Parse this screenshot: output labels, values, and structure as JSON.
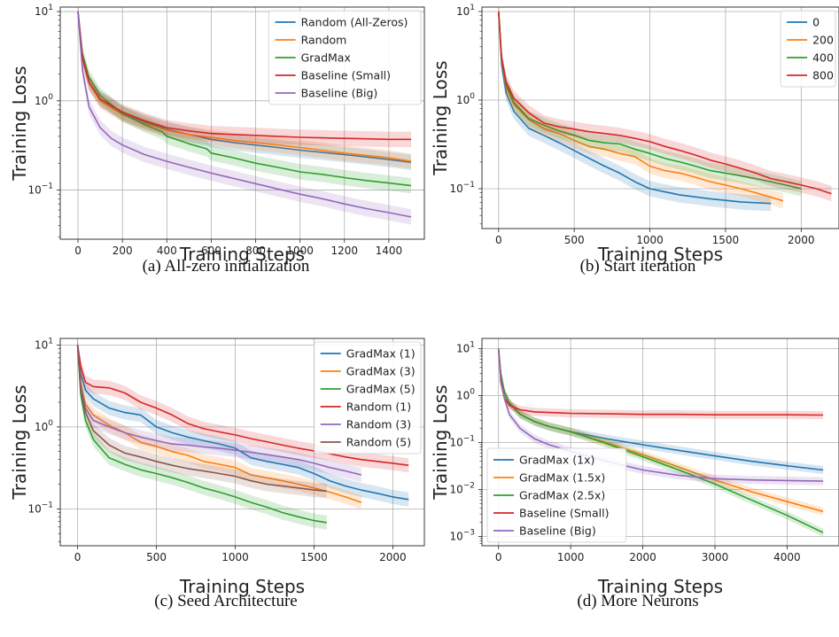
{
  "colors": {
    "C0": "#1f77b4",
    "C1": "#ff7f0e",
    "C2": "#2ca02c",
    "C3": "#d62728",
    "C4": "#9467bd",
    "C5": "#8c564b",
    "grid": "#b0b0b0",
    "axis": "#222222"
  },
  "chart_data": [
    {
      "id": "a",
      "type": "line",
      "caption": "(a) All-zero initialization",
      "xlabel": "Training Steps",
      "ylabel": "Training Loss",
      "yscale": "log",
      "xlim": [
        -80,
        1560
      ],
      "ylog_range": [
        -1.55,
        1.05
      ],
      "xticks": [
        0,
        200,
        400,
        600,
        800,
        1000,
        1200,
        1400
      ],
      "yticks": [
        {
          "label_base": "10",
          "label_exp": "1",
          "value": 10
        },
        {
          "label_base": "10",
          "label_exp": "0",
          "value": 1
        },
        {
          "label_base": "10",
          "label_exp": "−1",
          "value": 0.1
        }
      ],
      "legend": "top-right",
      "series": [
        {
          "name": "Random (All-Zeros)",
          "color": "C0",
          "x": [
            0,
            20,
            50,
            100,
            200,
            300,
            400,
            500,
            600,
            700,
            800,
            900,
            1000,
            1100,
            1200,
            1300,
            1400,
            1500
          ],
          "y": [
            10,
            3.0,
            1.6,
            1.05,
            0.72,
            0.58,
            0.48,
            0.42,
            0.37,
            0.34,
            0.32,
            0.3,
            0.28,
            0.265,
            0.25,
            0.235,
            0.22,
            0.205
          ]
        },
        {
          "name": "Random",
          "color": "C1",
          "x": [
            0,
            20,
            50,
            100,
            200,
            300,
            400,
            500,
            600,
            700,
            800,
            900,
            1000,
            1100,
            1200,
            1300,
            1400,
            1500
          ],
          "y": [
            10,
            3.0,
            1.6,
            1.0,
            0.7,
            0.56,
            0.47,
            0.42,
            0.39,
            0.36,
            0.34,
            0.32,
            0.3,
            0.28,
            0.26,
            0.245,
            0.23,
            0.21
          ]
        },
        {
          "name": "GradMax",
          "color": "C2",
          "x": [
            0,
            20,
            50,
            100,
            200,
            300,
            380,
            400,
            500,
            580,
            600,
            700,
            800,
            900,
            1000,
            1100,
            1200,
            1300,
            1400,
            1500
          ],
          "y": [
            10,
            3.3,
            1.8,
            1.15,
            0.72,
            0.54,
            0.45,
            0.4,
            0.33,
            0.29,
            0.26,
            0.23,
            0.2,
            0.18,
            0.16,
            0.15,
            0.138,
            0.128,
            0.12,
            0.112
          ]
        },
        {
          "name": "Baseline (Small)",
          "color": "C3",
          "x": [
            0,
            20,
            50,
            100,
            200,
            300,
            400,
            500,
            600,
            700,
            800,
            900,
            1000,
            1100,
            1200,
            1300,
            1400,
            1500
          ],
          "y": [
            10,
            3.0,
            1.6,
            1.05,
            0.75,
            0.6,
            0.5,
            0.46,
            0.43,
            0.42,
            0.41,
            0.4,
            0.39,
            0.385,
            0.38,
            0.375,
            0.37,
            0.37
          ]
        },
        {
          "name": "Baseline (Big)",
          "color": "C4",
          "x": [
            0,
            20,
            50,
            100,
            150,
            200,
            300,
            400,
            500,
            600,
            700,
            800,
            900,
            1000,
            1100,
            1200,
            1300,
            1400,
            1500
          ],
          "y": [
            10,
            2.2,
            0.85,
            0.5,
            0.38,
            0.32,
            0.25,
            0.21,
            0.18,
            0.155,
            0.135,
            0.118,
            0.103,
            0.09,
            0.08,
            0.07,
            0.062,
            0.056,
            0.05
          ]
        }
      ]
    },
    {
      "id": "b",
      "type": "line",
      "caption": "(b) Start iteration",
      "xlabel": "Training Steps",
      "ylabel": "Training Loss",
      "yscale": "log",
      "xlim": [
        -110,
        2250
      ],
      "ylog_range": [
        -1.45,
        1.05
      ],
      "xticks": [
        0,
        500,
        1000,
        1500,
        2000
      ],
      "yticks": [
        {
          "label_base": "10",
          "label_exp": "1",
          "value": 10
        },
        {
          "label_base": "10",
          "label_exp": "0",
          "value": 1
        },
        {
          "label_base": "10",
          "label_exp": "−1",
          "value": 0.1
        }
      ],
      "legend": "top-right",
      "series": [
        {
          "name": "0",
          "color": "C0",
          "x": [
            0,
            20,
            50,
            100,
            200,
            300,
            400,
            500,
            600,
            700,
            800,
            900,
            1000,
            1200,
            1400,
            1600,
            1800
          ],
          "y": [
            10,
            2.5,
            1.2,
            0.75,
            0.48,
            0.4,
            0.33,
            0.27,
            0.22,
            0.18,
            0.15,
            0.12,
            0.1,
            0.085,
            0.077,
            0.071,
            0.068
          ]
        },
        {
          "name": "200",
          "color": "C1",
          "x": [
            0,
            20,
            50,
            100,
            200,
            300,
            400,
            500,
            600,
            700,
            800,
            900,
            1000,
            1100,
            1200,
            1300,
            1400,
            1500,
            1600,
            1700,
            1800,
            1880
          ],
          "y": [
            10,
            2.8,
            1.4,
            0.9,
            0.6,
            0.48,
            0.42,
            0.35,
            0.3,
            0.28,
            0.25,
            0.23,
            0.18,
            0.16,
            0.15,
            0.135,
            0.12,
            0.11,
            0.1,
            0.09,
            0.08,
            0.073
          ]
        },
        {
          "name": "400",
          "color": "C2",
          "x": [
            0,
            20,
            50,
            100,
            200,
            300,
            400,
            500,
            600,
            700,
            800,
            900,
            1000,
            1100,
            1200,
            1300,
            1400,
            1500,
            1600,
            1700,
            1800,
            1900,
            2000
          ],
          "y": [
            10,
            2.9,
            1.5,
            0.95,
            0.62,
            0.52,
            0.45,
            0.4,
            0.35,
            0.33,
            0.32,
            0.28,
            0.25,
            0.22,
            0.2,
            0.18,
            0.16,
            0.15,
            0.14,
            0.13,
            0.12,
            0.11,
            0.1
          ]
        },
        {
          "name": "800",
          "color": "C3",
          "x": [
            0,
            20,
            50,
            100,
            200,
            300,
            400,
            500,
            600,
            700,
            800,
            900,
            1000,
            1100,
            1200,
            1300,
            1400,
            1500,
            1600,
            1700,
            1800,
            1900,
            2000,
            2100,
            2200
          ],
          "y": [
            10,
            3.0,
            1.6,
            1.05,
            0.72,
            0.55,
            0.5,
            0.47,
            0.44,
            0.42,
            0.4,
            0.37,
            0.34,
            0.3,
            0.27,
            0.24,
            0.21,
            0.19,
            0.17,
            0.15,
            0.13,
            0.12,
            0.11,
            0.1,
            0.088
          ]
        }
      ]
    },
    {
      "id": "c",
      "type": "line",
      "caption": "(c) Seed Architecture",
      "xlabel": "Training Steps",
      "ylabel": "Training Loss",
      "yscale": "log",
      "xlim": [
        -110,
        2200
      ],
      "ylog_range": [
        -1.45,
        1.08
      ],
      "xticks": [
        0,
        500,
        1000,
        1500,
        2000
      ],
      "yticks": [
        {
          "label_base": "10",
          "label_exp": "1",
          "value": 10
        },
        {
          "label_base": "10",
          "label_exp": "0",
          "value": 1
        },
        {
          "label_base": "10",
          "label_exp": "−1",
          "value": 0.1
        }
      ],
      "legend": "top-right",
      "series": [
        {
          "name": "GradMax (1)",
          "color": "C0",
          "x": [
            0,
            20,
            50,
            100,
            200,
            300,
            400,
            500,
            600,
            700,
            800,
            900,
            1000,
            1100,
            1200,
            1300,
            1400,
            1500,
            1600,
            1700,
            1800,
            1900,
            2000,
            2100
          ],
          "y": [
            10,
            4.5,
            2.8,
            2.2,
            1.7,
            1.5,
            1.4,
            1.0,
            0.85,
            0.75,
            0.68,
            0.62,
            0.55,
            0.42,
            0.38,
            0.35,
            0.32,
            0.27,
            0.22,
            0.19,
            0.17,
            0.155,
            0.14,
            0.13
          ]
        },
        {
          "name": "GradMax (3)",
          "color": "C1",
          "x": [
            0,
            20,
            50,
            100,
            200,
            300,
            400,
            500,
            600,
            700,
            800,
            900,
            1000,
            1100,
            1200,
            1300,
            1400,
            1500,
            1600,
            1700,
            1800
          ],
          "y": [
            10,
            3.5,
            1.9,
            1.4,
            1.05,
            0.85,
            0.65,
            0.58,
            0.5,
            0.45,
            0.38,
            0.35,
            0.32,
            0.26,
            0.24,
            0.22,
            0.2,
            0.18,
            0.16,
            0.14,
            0.12
          ]
        },
        {
          "name": "GradMax (5)",
          "color": "C2",
          "x": [
            0,
            20,
            50,
            100,
            200,
            300,
            400,
            500,
            600,
            700,
            800,
            900,
            1000,
            1100,
            1200,
            1300,
            1400,
            1500,
            1580
          ],
          "y": [
            10,
            2.5,
            1.2,
            0.7,
            0.42,
            0.35,
            0.3,
            0.27,
            0.24,
            0.21,
            0.18,
            0.16,
            0.14,
            0.12,
            0.105,
            0.09,
            0.08,
            0.072,
            0.068
          ]
        },
        {
          "name": "Random (1)",
          "color": "C3",
          "x": [
            0,
            20,
            50,
            100,
            200,
            300,
            400,
            500,
            600,
            700,
            800,
            900,
            1000,
            1100,
            1200,
            1300,
            1400,
            1500,
            1600,
            1700,
            1800,
            1900,
            2000,
            2100
          ],
          "y": [
            10,
            5.5,
            3.5,
            3.1,
            3.0,
            2.6,
            2.0,
            1.7,
            1.4,
            1.1,
            0.95,
            0.87,
            0.8,
            0.72,
            0.66,
            0.6,
            0.55,
            0.51,
            0.47,
            0.43,
            0.4,
            0.38,
            0.36,
            0.34
          ]
        },
        {
          "name": "Random (3)",
          "color": "C4",
          "x": [
            0,
            20,
            50,
            100,
            200,
            300,
            400,
            500,
            600,
            700,
            800,
            900,
            1000,
            1100,
            1200,
            1300,
            1400,
            1500,
            1600,
            1700,
            1800
          ],
          "y": [
            10,
            3.2,
            1.7,
            1.2,
            1.0,
            0.85,
            0.75,
            0.68,
            0.62,
            0.6,
            0.57,
            0.55,
            0.52,
            0.49,
            0.46,
            0.43,
            0.4,
            0.36,
            0.32,
            0.29,
            0.26
          ]
        },
        {
          "name": "Random (5)",
          "color": "C5",
          "x": [
            0,
            20,
            50,
            100,
            200,
            300,
            400,
            500,
            600,
            700,
            800,
            900,
            1000,
            1100,
            1200,
            1300,
            1400,
            1500,
            1580
          ],
          "y": [
            10,
            2.8,
            1.5,
            0.9,
            0.6,
            0.48,
            0.43,
            0.38,
            0.34,
            0.31,
            0.29,
            0.27,
            0.25,
            0.22,
            0.2,
            0.19,
            0.18,
            0.17,
            0.165
          ]
        }
      ]
    },
    {
      "id": "d",
      "type": "line",
      "caption": "(d) More Neurons",
      "xlabel": "Training Steps",
      "ylabel": "Training Loss",
      "yscale": "log",
      "xlim": [
        -230,
        4720
      ],
      "ylog_range": [
        -3.2,
        1.22
      ],
      "xticks": [
        0,
        1000,
        2000,
        3000,
        4000
      ],
      "yticks": [
        {
          "label_base": "10",
          "label_exp": "1",
          "value": 10
        },
        {
          "label_base": "10",
          "label_exp": "0",
          "value": 1
        },
        {
          "label_base": "10",
          "label_exp": "−1",
          "value": 0.1
        },
        {
          "label_base": "10",
          "label_exp": "−2",
          "value": 0.01
        },
        {
          "label_base": "10",
          "label_exp": "−3",
          "value": 0.001
        }
      ],
      "legend": "bottom-left",
      "series": [
        {
          "name": "GradMax (1x)",
          "color": "C0",
          "x": [
            0,
            30,
            80,
            150,
            300,
            500,
            700,
            1000,
            1500,
            2000,
            2500,
            3000,
            3500,
            4000,
            4500
          ],
          "y": [
            10,
            3.0,
            1.2,
            0.7,
            0.4,
            0.28,
            0.22,
            0.17,
            0.12,
            0.09,
            0.068,
            0.052,
            0.04,
            0.032,
            0.026
          ]
        },
        {
          "name": "GradMax (1.5x)",
          "color": "C1",
          "x": [
            0,
            30,
            80,
            150,
            300,
            500,
            700,
            1000,
            1500,
            2000,
            2500,
            3000,
            3500,
            4000,
            4500
          ],
          "y": [
            10,
            3.0,
            1.2,
            0.7,
            0.4,
            0.28,
            0.22,
            0.17,
            0.1,
            0.055,
            0.03,
            0.016,
            0.009,
            0.0055,
            0.0034
          ]
        },
        {
          "name": "GradMax (2.5x)",
          "color": "C2",
          "x": [
            0,
            30,
            80,
            150,
            300,
            500,
            700,
            1000,
            1500,
            2000,
            2500,
            3000,
            3500,
            4000,
            4500
          ],
          "y": [
            10,
            3.0,
            1.2,
            0.7,
            0.4,
            0.28,
            0.22,
            0.17,
            0.095,
            0.05,
            0.026,
            0.013,
            0.006,
            0.0028,
            0.0012
          ]
        },
        {
          "name": "Baseline (Small)",
          "color": "C3",
          "x": [
            0,
            30,
            80,
            150,
            300,
            500,
            1000,
            1500,
            2000,
            2500,
            3000,
            3500,
            4000,
            4500
          ],
          "y": [
            10,
            2.0,
            0.9,
            0.62,
            0.5,
            0.45,
            0.42,
            0.41,
            0.4,
            0.4,
            0.39,
            0.39,
            0.39,
            0.385
          ]
        },
        {
          "name": "Baseline (Big)",
          "color": "C4",
          "x": [
            0,
            30,
            80,
            150,
            300,
            500,
            700,
            1000,
            1500,
            2000,
            2500,
            3000,
            3500,
            4000,
            4500
          ],
          "y": [
            10,
            2.5,
            0.9,
            0.4,
            0.2,
            0.12,
            0.09,
            0.065,
            0.04,
            0.026,
            0.02,
            0.017,
            0.016,
            0.0155,
            0.015
          ]
        }
      ]
    }
  ]
}
